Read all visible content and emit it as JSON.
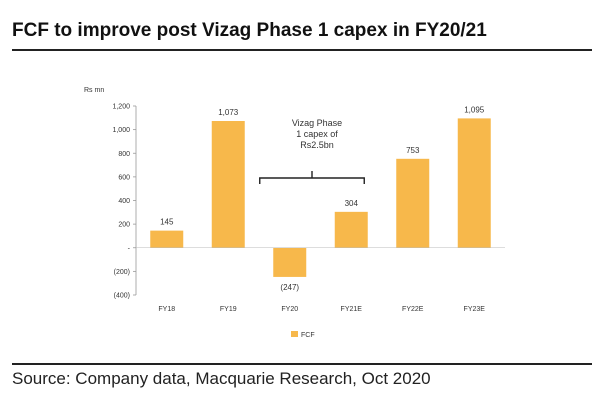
{
  "title": "FCF to improve post Vizag Phase 1 capex in FY20/21",
  "source": "Source: Company data, Macquarie Research, Oct 2020",
  "chart_data": {
    "type": "bar",
    "unit_label": "Rs mn",
    "categories": [
      "FY18",
      "FY19",
      "FY20",
      "FY21E",
      "FY22E",
      "FY23E"
    ],
    "series": [
      {
        "name": "FCF",
        "values": [
          145,
          1073,
          -247,
          304,
          753,
          1095
        ]
      }
    ],
    "data_labels": [
      "145",
      "1,073",
      "(247)",
      "304",
      "753",
      "1,095"
    ],
    "yticks": [
      1200,
      1000,
      800,
      600,
      400,
      200,
      0,
      -200,
      -400
    ],
    "ytick_labels": [
      "1,200",
      "1,000",
      "800",
      "600",
      "400",
      "200",
      "-",
      "(200)",
      "(400)"
    ],
    "ylim": [
      -400,
      1200
    ],
    "annotation": {
      "lines": [
        "Vizag Phase",
        "1 capex of",
        "Rs2.5bn"
      ],
      "spans": [
        "FY20",
        "FY21E"
      ]
    },
    "legend_position": "bottom",
    "bar_color": "#F7B84B",
    "grid": false
  }
}
